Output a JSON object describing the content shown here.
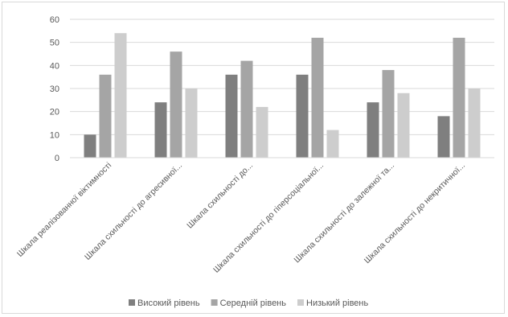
{
  "chart_data": {
    "type": "bar",
    "title": "",
    "xlabel": "",
    "ylabel": "",
    "ylim": [
      0,
      60
    ],
    "y_ticks": [
      0,
      10,
      20,
      30,
      40,
      50,
      60
    ],
    "grid": true,
    "legend_position": "bottom",
    "categories": [
      "Шкала реалізованної віктимності",
      "Шкала схильності до агресивної...",
      "Шкала схильності до...",
      "Шкала схильності до гіперсоціальної...",
      "Шкала схильності до залежної та...",
      "Шкала схильності до некритичної..."
    ],
    "series": [
      {
        "name": "Високий рівень",
        "color": "#7f7f7f",
        "values": [
          10,
          24,
          36,
          36,
          24,
          18
        ]
      },
      {
        "name": "Середній рівень",
        "color": "#a5a5a5",
        "values": [
          36,
          46,
          42,
          52,
          38,
          52
        ]
      },
      {
        "name": "Низький рівень",
        "color": "#cdcdcd",
        "values": [
          54,
          30,
          22,
          12,
          28,
          30
        ]
      }
    ]
  }
}
